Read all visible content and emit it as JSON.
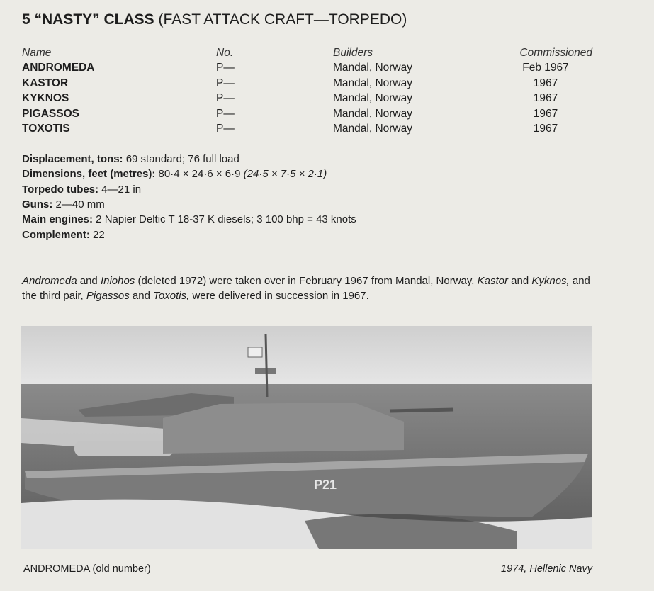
{
  "title": {
    "bold": "5 “NASTY” CLASS",
    "rest": " (FAST ATTACK CRAFT—TORPEDO)"
  },
  "table": {
    "headers": [
      "Name",
      "No.",
      "Builders",
      "Commissioned"
    ],
    "rows": [
      [
        "ANDROMEDA",
        "P—",
        "Mandal, Norway",
        "Feb 1967"
      ],
      [
        "KASTOR",
        "P—",
        "Mandal, Norway",
        "1967"
      ],
      [
        "KYKNOS",
        "P—",
        "Mandal, Norway",
        "1967"
      ],
      [
        "PIGASSOS",
        "P—",
        "Mandal, Norway",
        "1967"
      ],
      [
        "TOXOTIS",
        "P—",
        "Mandal, Norway",
        "1967"
      ]
    ]
  },
  "specs": [
    {
      "label": "Displacement, tons:",
      "value": " 69 standard; 76 full load",
      "italic": ""
    },
    {
      "label": "Dimensions, feet (metres):",
      "value": " 80·4 × 24·6 × 6·9 ",
      "italic": "(24·5 × 7·5 × 2·1)"
    },
    {
      "label": "Torpedo tubes:",
      "value": " 4—21 in",
      "italic": ""
    },
    {
      "label": "Guns:",
      "value": " 2—40 mm",
      "italic": ""
    },
    {
      "label": "Main engines:",
      "value": " 2 Napier Deltic T 18-37 K diesels; 3 100 bhp = 43 knots",
      "italic": ""
    },
    {
      "label": "Complement:",
      "value": " 22",
      "italic": ""
    }
  ],
  "paragraph": [
    {
      "t": "Andromeda",
      "i": true
    },
    {
      "t": " and ",
      "i": false
    },
    {
      "t": "Iniohos",
      "i": true
    },
    {
      "t": " (deleted 1972) were taken over in February 1967 from Mandal, Norway. ",
      "i": false
    },
    {
      "t": "Kastor",
      "i": true
    },
    {
      "t": " and ",
      "i": false
    },
    {
      "t": "Kyknos,",
      "i": true
    },
    {
      "t": " and the third pair, ",
      "i": false
    },
    {
      "t": "Pigassos",
      "i": true
    },
    {
      "t": " and ",
      "i": false
    },
    {
      "t": "Toxotis,",
      "i": true
    },
    {
      "t": " were delivered in succession in 1967.",
      "i": false
    }
  ],
  "photo": {
    "hull_number": "P21"
  },
  "caption": {
    "left": "ANDROMEDA (old number)",
    "right": "1974, Hellenic Navy"
  }
}
